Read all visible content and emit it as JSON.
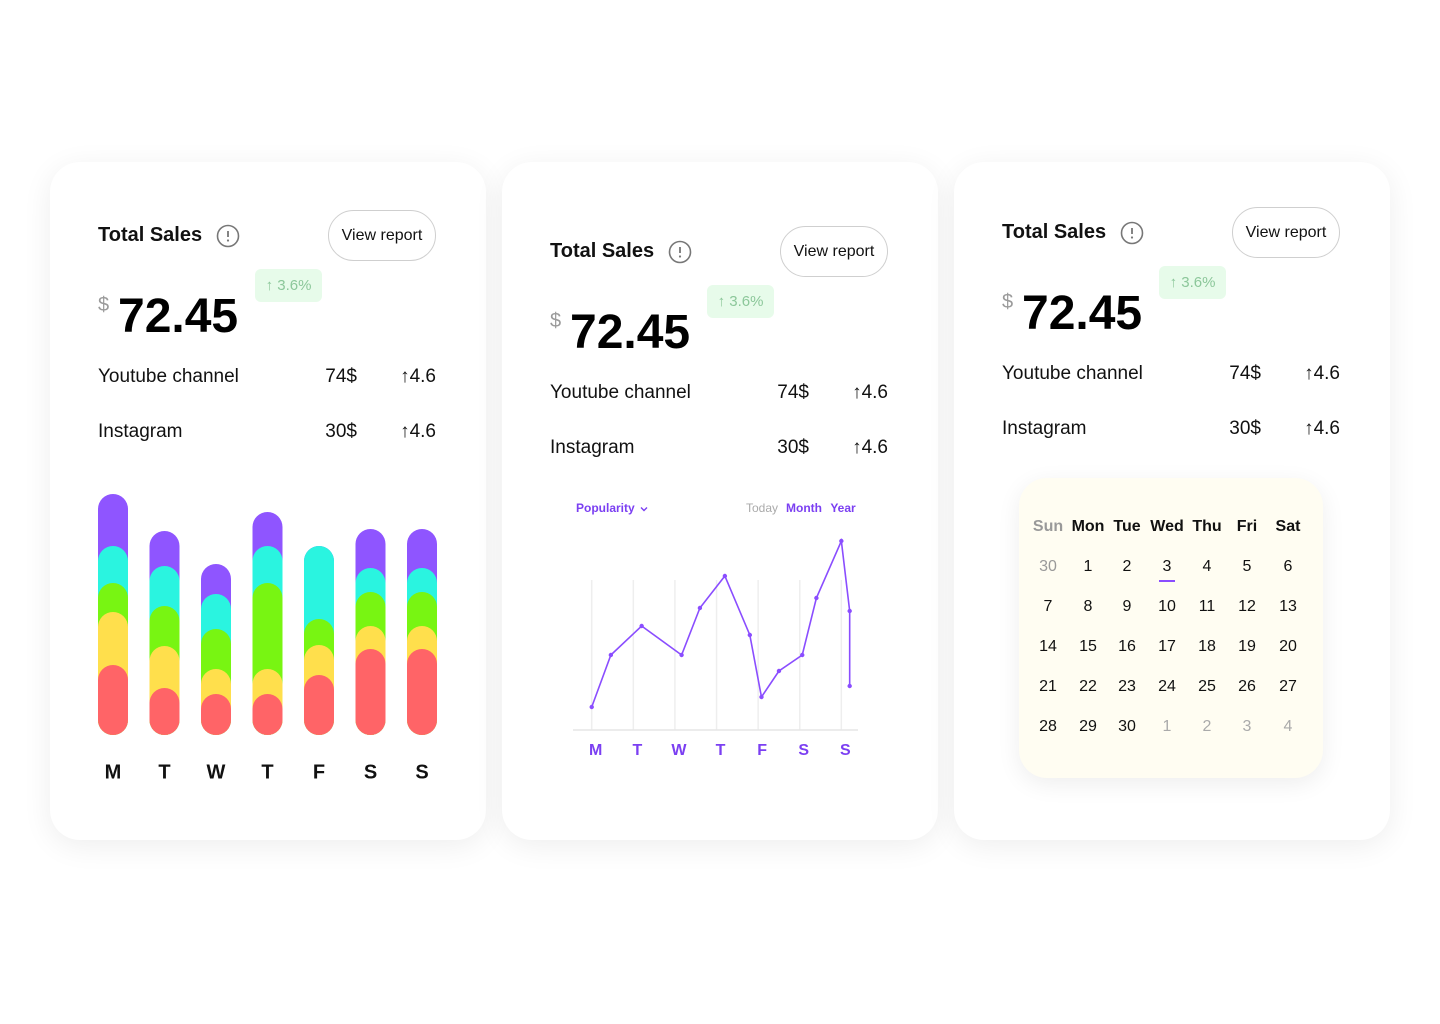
{
  "cards": [
    {
      "title": "Total Sales",
      "button": "View report",
      "currency": "$",
      "amount": "72.45",
      "change": "↑ 3.6%",
      "rows": [
        {
          "name": "Youtube channel",
          "value": "74$",
          "change": "↑4.6"
        },
        {
          "name": "Instagram",
          "value": "30$",
          "change": "↑4.6"
        }
      ]
    },
    {
      "title": "Total Sales",
      "button": "View report",
      "currency": "$",
      "amount": "72.45",
      "change": "↑ 3.6%",
      "rows": [
        {
          "name": "Youtube channel",
          "value": "74$",
          "change": "↑4.6"
        },
        {
          "name": "Instagram",
          "value": "30$",
          "change": "↑4.6"
        }
      ]
    },
    {
      "title": "Total Sales",
      "button": "View report",
      "currency": "$",
      "amount": "72.45",
      "change": "↑ 3.6%",
      "rows": [
        {
          "name": "Youtube channel",
          "value": "74$",
          "change": "↑4.6"
        },
        {
          "name": "Instagram",
          "value": "30$",
          "change": "↑4.6"
        }
      ]
    }
  ],
  "chart_data": [
    {
      "type": "bar",
      "stacked": true,
      "categories": [
        "M",
        "T",
        "W",
        "T",
        "F",
        "S",
        "S"
      ],
      "ylim": [
        0,
        250
      ],
      "series": [
        {
          "color": "#ff6467",
          "values": [
            70,
            47,
            41,
            41,
            60,
            86,
            86
          ]
        },
        {
          "color": "#ffdf4c",
          "values": [
            53,
            42,
            25,
            25,
            30,
            23,
            23
          ]
        },
        {
          "color": "#78f512",
          "values": [
            29,
            40,
            40,
            86,
            26,
            34,
            34
          ]
        },
        {
          "color": "#2af4e0",
          "values": [
            37,
            40,
            35,
            37,
            73,
            24,
            24
          ]
        },
        {
          "color": "#8f55ff",
          "values": [
            52,
            35,
            30,
            34,
            0,
            39,
            39
          ]
        }
      ]
    },
    {
      "type": "line",
      "filter": "Popularity",
      "periods": [
        {
          "label": "Today",
          "active": false
        },
        {
          "label": "Month",
          "active": true
        },
        {
          "label": "Year",
          "active": true
        }
      ],
      "x": [
        0,
        0.46,
        1.2,
        2.16,
        2.6,
        3.2,
        3.8,
        4.08,
        4.5,
        5.06,
        5.4,
        6,
        6.2,
        6.2
      ],
      "series": [
        {
          "color": "#8a4dff",
          "values": [
            23,
            75,
            104,
            75,
            122,
            154,
            95,
            33,
            59,
            75,
            132,
            189,
            119,
            44
          ]
        }
      ],
      "xlim": [
        -0.45,
        6.4
      ],
      "xticks": [
        {
          "value": 0,
          "label": "M"
        },
        {
          "value": 1,
          "label": "T"
        },
        {
          "value": 2,
          "label": "W"
        },
        {
          "value": 3,
          "label": "T"
        },
        {
          "value": 4,
          "label": "F"
        },
        {
          "value": 5,
          "label": "S"
        },
        {
          "value": 6,
          "label": "S"
        }
      ],
      "ylim": [
        0,
        200
      ],
      "grid": true
    }
  ],
  "calendar": {
    "weekdays": [
      "Sun",
      "Mon",
      "Tue",
      "Wed",
      "Thu",
      "Fri",
      "Sat"
    ],
    "prev_month_days": [
      30
    ],
    "days": [
      1,
      2,
      3,
      4,
      5,
      6,
      7,
      8,
      9,
      10,
      11,
      12,
      13,
      14,
      15,
      16,
      17,
      18,
      19,
      20,
      21,
      22,
      23,
      24,
      25,
      26,
      27,
      28,
      29,
      30
    ],
    "next_month_days": [
      1,
      2,
      3,
      4
    ],
    "selected": 3
  }
}
